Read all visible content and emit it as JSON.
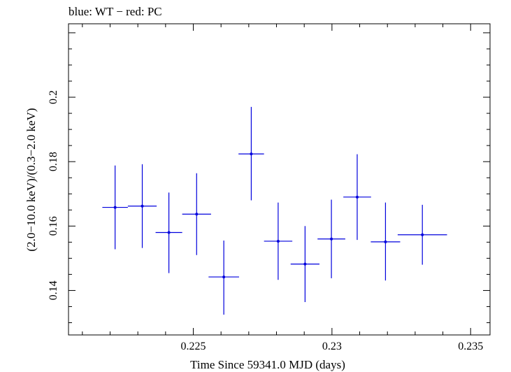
{
  "chart_data": {
    "type": "scatter",
    "title": "blue: WT − red: PC",
    "xlabel": "Time Since 59341.0 MJD (days)",
    "ylabel": "(2.0−10.0 keV)/(0.3−2.0 keV)",
    "xlim": [
      0.2205,
      0.2357
    ],
    "ylim": [
      0.1262,
      0.2228
    ],
    "x_ticks": [
      {
        "value": 0.225,
        "label": "0.225"
      },
      {
        "value": 0.23,
        "label": "0.23"
      },
      {
        "value": 0.235,
        "label": "0.235"
      }
    ],
    "y_ticks": [
      {
        "value": 0.14,
        "label": "0.14"
      },
      {
        "value": 0.16,
        "label": "0.16"
      },
      {
        "value": 0.18,
        "label": "0.18"
      },
      {
        "value": 0.2,
        "label": "0.2"
      }
    ],
    "series": [
      {
        "name": "WT",
        "color": "#0000dd",
        "points": [
          {
            "x": 0.22218,
            "xerr": 0.00046,
            "y": 0.1658,
            "ylo": 0.1528,
            "yhi": 0.1788
          },
          {
            "x": 0.22316,
            "xerr": 0.00052,
            "y": 0.1662,
            "ylo": 0.1532,
            "yhi": 0.1792
          },
          {
            "x": 0.22412,
            "xerr": 0.00048,
            "y": 0.158,
            "ylo": 0.1454,
            "yhi": 0.1704
          },
          {
            "x": 0.22512,
            "xerr": 0.00052,
            "y": 0.1637,
            "ylo": 0.151,
            "yhi": 0.1764
          },
          {
            "x": 0.2261,
            "xerr": 0.00055,
            "y": 0.1442,
            "ylo": 0.1325,
            "yhi": 0.1555
          },
          {
            "x": 0.22709,
            "xerr": 0.00046,
            "y": 0.1824,
            "ylo": 0.168,
            "yhi": 0.197
          },
          {
            "x": 0.22806,
            "xerr": 0.00051,
            "y": 0.1553,
            "ylo": 0.1433,
            "yhi": 0.1673
          },
          {
            "x": 0.22903,
            "xerr": 0.00052,
            "y": 0.1482,
            "ylo": 0.1364,
            "yhi": 0.16
          },
          {
            "x": 0.22998,
            "xerr": 0.0005,
            "y": 0.156,
            "ylo": 0.1438,
            "yhi": 0.1682
          },
          {
            "x": 0.23091,
            "xerr": 0.0005,
            "y": 0.169,
            "ylo": 0.1557,
            "yhi": 0.1823
          },
          {
            "x": 0.23193,
            "xerr": 0.00053,
            "y": 0.1551,
            "ylo": 0.1431,
            "yhi": 0.1673
          },
          {
            "x": 0.23326,
            "xerr": 0.00089,
            "y": 0.1573,
            "ylo": 0.148,
            "yhi": 0.1666
          }
        ]
      }
    ]
  }
}
